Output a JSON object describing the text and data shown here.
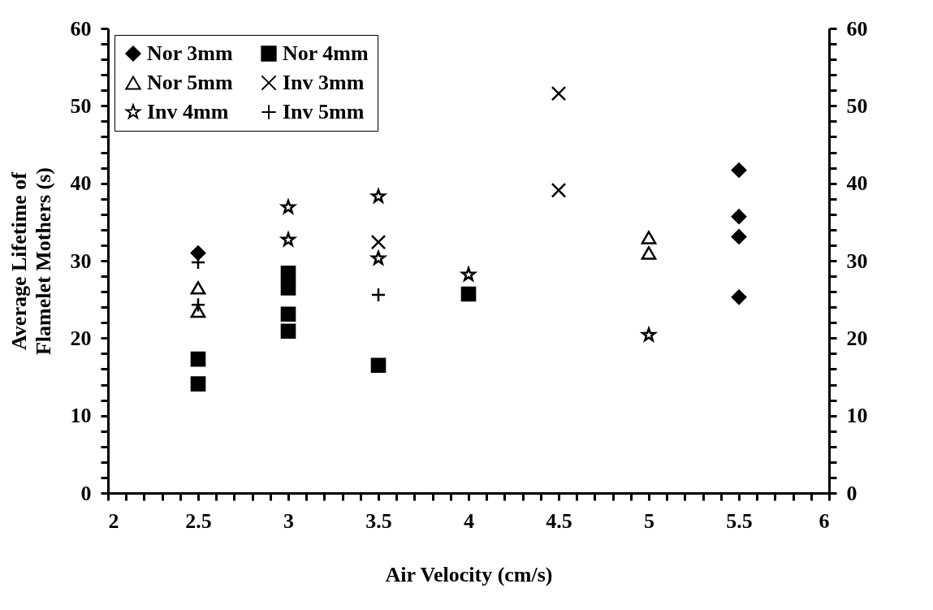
{
  "chart_data": {
    "type": "scatter",
    "xlabel": "Air Velocity (cm/s)",
    "ylabel": "Average Lifetime of Flamelet Mothers (s)",
    "xlim": [
      2,
      6
    ],
    "ylim": [
      0,
      60
    ],
    "y2lim": [
      0,
      60
    ],
    "xticks": [
      2,
      {
        "value": 2.1,
        "label": null
      },
      {
        "value": 2.2,
        "label": null
      },
      {
        "value": 2.3,
        "label": null
      },
      {
        "value": 2.4,
        "label": null
      },
      2.5,
      {
        "value": 2.6,
        "label": null
      },
      {
        "value": 2.7,
        "label": null
      },
      {
        "value": 2.8,
        "label": null
      },
      {
        "value": 2.9,
        "label": null
      },
      3,
      {
        "value": 3.1,
        "label": null
      },
      {
        "value": 3.2,
        "label": null
      },
      {
        "value": 3.3,
        "label": null
      },
      {
        "value": 3.4,
        "label": null
      },
      3.5,
      {
        "value": 3.6,
        "label": null
      },
      {
        "value": 3.7,
        "label": null
      },
      {
        "value": 3.8,
        "label": null
      },
      {
        "value": 3.9,
        "label": null
      },
      4,
      {
        "value": 4.1,
        "label": null
      },
      {
        "value": 4.2,
        "label": null
      },
      {
        "value": 4.3,
        "label": null
      },
      {
        "value": 4.4,
        "label": null
      },
      4.5,
      {
        "value": 4.6,
        "label": null
      },
      {
        "value": 4.7,
        "label": null
      },
      {
        "value": 4.8,
        "label": null
      },
      {
        "value": 4.9,
        "label": null
      },
      5,
      {
        "value": 5.1,
        "label": null
      },
      {
        "value": 5.2,
        "label": null
      },
      {
        "value": 5.3,
        "label": null
      },
      {
        "value": 5.4,
        "label": null
      },
      5.5,
      {
        "value": 5.6,
        "label": null
      },
      {
        "value": 5.7,
        "label": null
      },
      {
        "value": 5.8,
        "label": null
      },
      {
        "value": 5.9,
        "label": null
      },
      6
    ],
    "yticks": [
      0,
      {
        "value": 2,
        "label": null
      },
      {
        "value": 4,
        "label": null
      },
      {
        "value": 6,
        "label": null
      },
      {
        "value": 8,
        "label": null
      },
      10,
      {
        "value": 12,
        "label": null
      },
      {
        "value": 14,
        "label": null
      },
      {
        "value": 16,
        "label": null
      },
      {
        "value": 18,
        "label": null
      },
      20,
      {
        "value": 22,
        "label": null
      },
      {
        "value": 24,
        "label": null
      },
      {
        "value": 26,
        "label": null
      },
      {
        "value": 28,
        "label": null
      },
      30,
      {
        "value": 32,
        "label": null
      },
      {
        "value": 34,
        "label": null
      },
      {
        "value": 36,
        "label": null
      },
      {
        "value": 38,
        "label": null
      },
      40,
      {
        "value": 42,
        "label": null
      },
      {
        "value": 44,
        "label": null
      },
      {
        "value": 46,
        "label": null
      },
      {
        "value": 48,
        "label": null
      },
      50,
      {
        "value": 52,
        "label": null
      },
      {
        "value": 54,
        "label": null
      },
      {
        "value": 56,
        "label": null
      },
      {
        "value": 58,
        "label": null
      },
      60
    ],
    "y2ticks": [
      0,
      {
        "value": 2,
        "label": null
      },
      {
        "value": 4,
        "label": null
      },
      {
        "value": 6,
        "label": null
      },
      {
        "value": 8,
        "label": null
      },
      10,
      {
        "value": 12,
        "label": null
      },
      {
        "value": 14,
        "label": null
      },
      {
        "value": 16,
        "label": null
      },
      {
        "value": 18,
        "label": null
      },
      20,
      {
        "value": 22,
        "label": null
      },
      {
        "value": 24,
        "label": null
      },
      {
        "value": 26,
        "label": null
      },
      {
        "value": 28,
        "label": null
      },
      30,
      {
        "value": 32,
        "label": null
      },
      {
        "value": 34,
        "label": null
      },
      {
        "value": 36,
        "label": null
      },
      {
        "value": 38,
        "label": null
      },
      40,
      {
        "value": 42,
        "label": null
      },
      {
        "value": 44,
        "label": null
      },
      {
        "value": 46,
        "label": null
      },
      {
        "value": 48,
        "label": null
      },
      50,
      {
        "value": 52,
        "label": null
      },
      {
        "value": 54,
        "label": null
      },
      {
        "value": 56,
        "label": null
      },
      {
        "value": 58,
        "label": null
      },
      60
    ],
    "legend": "top left",
    "grid": false,
    "series": [
      {
        "name": "Nor 3mm",
        "color": "#000000",
        "marker": "diamond",
        "x": [
          2.5,
          5.5,
          5.5,
          5.5,
          5.5
        ],
        "values": [
          31,
          41.7,
          35.7,
          33.1,
          25.3
        ]
      },
      {
        "name": "Nor 4mm",
        "color": "#000000",
        "marker": "square",
        "x": [
          2.5,
          2.5,
          3,
          3,
          3,
          3,
          3.5,
          4
        ],
        "values": [
          17.3,
          14.1,
          28.4,
          26.5,
          23.1,
          20.9,
          16.5,
          25.7
        ]
      },
      {
        "name": "Nor 5mm",
        "color": "#000000",
        "marker": "triangle",
        "x": [
          2.5,
          2.5,
          5,
          5
        ],
        "values": [
          26.5,
          23.5,
          33,
          31
        ]
      },
      {
        "name": "Inv 3mm",
        "color": "#000000",
        "marker": "cross",
        "x": [
          3.5,
          4.5,
          4.5
        ],
        "values": [
          32.4,
          51.6,
          39.1
        ]
      },
      {
        "name": "Inv 4mm",
        "color": "#000000",
        "marker": "star",
        "x": [
          3,
          3,
          3.5,
          3.5,
          4,
          5
        ],
        "values": [
          36.9,
          32.7,
          38.3,
          30.3,
          28.2,
          20.4
        ]
      },
      {
        "name": "Inv 5mm",
        "color": "#000000",
        "marker": "plus",
        "x": [
          2.5,
          2.5,
          3.5
        ],
        "values": [
          29.8,
          24.3,
          25.6
        ]
      }
    ]
  }
}
